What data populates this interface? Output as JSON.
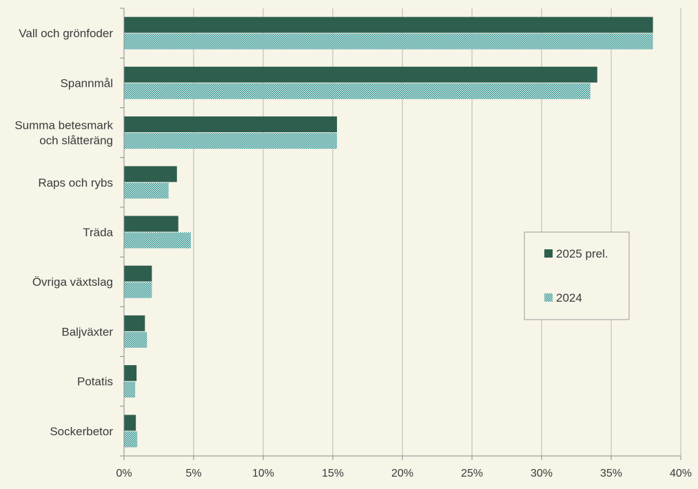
{
  "chart_data": {
    "type": "bar",
    "orientation": "horizontal",
    "categories": [
      "Vall och grönfoder",
      "Spannmål",
      "Summa betesmark\noch slåtteräng",
      "Raps och rybs",
      "Träda",
      "Övriga växtslag",
      "Baljväxter",
      "Potatis",
      "Sockerbetor"
    ],
    "series": [
      {
        "name": "2025 prel.",
        "values": [
          38.0,
          34.0,
          15.3,
          3.8,
          3.9,
          2.0,
          1.5,
          0.9,
          0.85
        ],
        "color": "#2e5e4e",
        "pattern": "solid"
      },
      {
        "name": "2024",
        "values": [
          38.0,
          33.5,
          15.3,
          3.2,
          4.8,
          2.0,
          1.65,
          0.8,
          0.95
        ],
        "color": "#1f8a85",
        "pattern": "checker"
      }
    ],
    "xlim": [
      0,
      40
    ],
    "xticks": [
      "0%",
      "5%",
      "10%",
      "15%",
      "20%",
      "25%",
      "30%",
      "35%",
      "40%"
    ],
    "grid": "vertical",
    "legend": "right",
    "title": "",
    "xlabel": "",
    "ylabel": ""
  }
}
